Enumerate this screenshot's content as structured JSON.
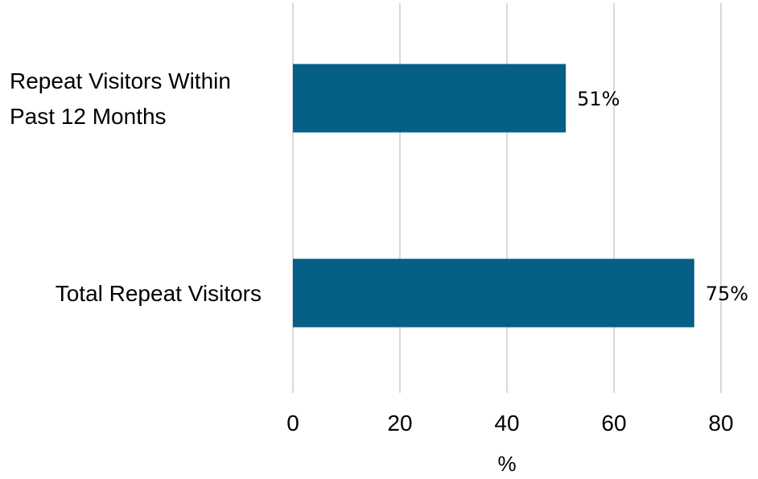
{
  "chart_data": {
    "type": "bar",
    "orientation": "horizontal",
    "categories": [
      "Repeat Visitors Within Past 12 Months",
      "Total Repeat Visitors"
    ],
    "category_label_lines": [
      [
        "Repeat Visitors Within",
        "Past 12 Months"
      ],
      [
        "Total Repeat Visitors"
      ]
    ],
    "series": [
      {
        "values": [
          51,
          75
        ],
        "data_labels": [
          "51%",
          "75%"
        ]
      }
    ],
    "xlabel": "%",
    "ylabel": "",
    "xlim": [
      0,
      80
    ],
    "xticks": [
      0,
      20,
      40,
      60,
      80
    ],
    "xtick_labels": [
      "0",
      "20",
      "40",
      "60",
      "80"
    ],
    "grid": "vertical",
    "legend": "none",
    "bar_color": "#055f86",
    "grid_color": "#d9d9d9"
  }
}
